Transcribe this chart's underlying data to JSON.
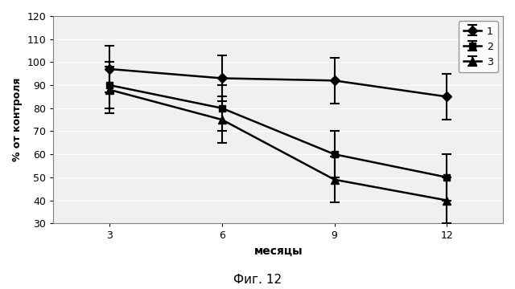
{
  "x": [
    3,
    6,
    9,
    12
  ],
  "series": [
    {
      "label": "1",
      "y": [
        97,
        93,
        92,
        85
      ],
      "yerr_upper": [
        10,
        10,
        10,
        10
      ],
      "yerr_lower": [
        10,
        10,
        10,
        10
      ],
      "color": "#000000",
      "marker": "D",
      "markersize": 6,
      "linewidth": 1.8
    },
    {
      "label": "2",
      "y": [
        90,
        80,
        60,
        50
      ],
      "yerr_upper": [
        10,
        10,
        10,
        10
      ],
      "yerr_lower": [
        10,
        10,
        10,
        10
      ],
      "color": "#000000",
      "marker": "s",
      "markersize": 6,
      "linewidth": 1.8
    },
    {
      "label": "3",
      "y": [
        88,
        75,
        49,
        40
      ],
      "yerr_upper": [
        10,
        10,
        10,
        10
      ],
      "yerr_lower": [
        10,
        10,
        10,
        10
      ],
      "color": "#000000",
      "marker": "^",
      "markersize": 7,
      "linewidth": 1.8
    }
  ],
  "xlabel": "месяцы",
  "ylabel": "% от контроля",
  "ylim": [
    30,
    120
  ],
  "yticks": [
    30,
    40,
    50,
    60,
    70,
    80,
    90,
    100,
    110,
    120
  ],
  "xticks": [
    3,
    6,
    9,
    12
  ],
  "caption": "Фиг. 12",
  "plot_bg_color": "#f0f0f0",
  "fig_bg_color": "#ffffff",
  "grid_color": "#ffffff",
  "grid_linestyle": "-",
  "legend_loc": "upper right"
}
